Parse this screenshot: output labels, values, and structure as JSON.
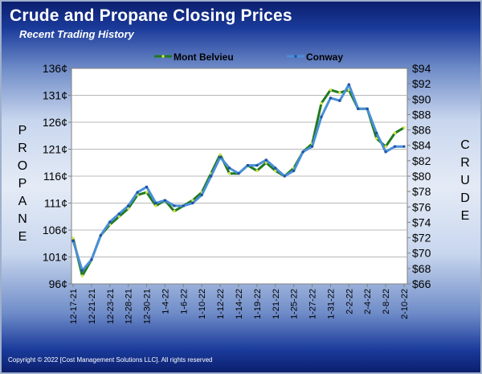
{
  "header": {
    "title": "Crude and Propane Closing Prices",
    "subtitle": "Recent Trading History"
  },
  "footer": {
    "copyright": "Copyright © 2022 [Cost Management Solutions LLC].  All rights reserved"
  },
  "axis_titles": {
    "left": "PROPANE",
    "right": "CRUDE"
  },
  "colors": {
    "mont_belvieu": "#1f7a1f",
    "mont_belvieu_marker": "#d8e84a",
    "conway": "#4a8fd8",
    "conway_marker": "#1e4fa0",
    "plot_bg": "#ffffff",
    "grid": "#b8b8b8"
  },
  "chart_data": {
    "type": "line",
    "title": "Crude and Propane Closing Prices",
    "subtitle": "Recent Trading History",
    "ylabel": "PROPANE",
    "y2label": "CRUDE",
    "ylim": [
      96,
      136
    ],
    "y2lim": [
      66,
      94
    ],
    "yticks": [
      "96¢",
      "101¢",
      "106¢",
      "111¢",
      "116¢",
      "121¢",
      "126¢",
      "131¢",
      "136¢"
    ],
    "y2ticks": [
      "$66",
      "$68",
      "$70",
      "$72",
      "$74",
      "$76",
      "$78",
      "$80",
      "$82",
      "$84",
      "$86",
      "$88",
      "$90",
      "$92",
      "$94"
    ],
    "x_tick_labels": [
      "12-17-21",
      "12-21-21",
      "12-23-21",
      "12-28-21",
      "12-30-21",
      "1-4-22",
      "1-6-22",
      "1-10-22",
      "1-12-22",
      "1-14-22",
      "1-19-22",
      "1-21-22",
      "1-25-22",
      "1-27-22",
      "1-31-22",
      "2-2-22",
      "2-4-22",
      "2-8-22",
      "2-10-22"
    ],
    "grid": true,
    "legend_position": "top",
    "series": [
      {
        "name": "Mont Belvieu",
        "values": [
          104.5,
          97.5,
          100.5,
          105,
          107,
          108.5,
          110,
          112.5,
          113,
          110.5,
          111.5,
          109.5,
          110.5,
          111.5,
          113,
          116.5,
          120,
          116.5,
          116.5,
          118,
          117,
          118.5,
          117,
          116,
          117.5,
          120.5,
          122,
          129.5,
          132,
          131.5,
          132,
          128.5,
          128.5,
          123,
          121.5,
          124,
          125
        ]
      },
      {
        "name": "Conway",
        "values": [
          104,
          98.5,
          100.5,
          105,
          107.5,
          109,
          110.5,
          113,
          114,
          111,
          111.5,
          110.5,
          110.5,
          111,
          112.5,
          116,
          119.5,
          117.5,
          116.5,
          118,
          118,
          119,
          117.5,
          116,
          117,
          120.5,
          121.5,
          127,
          130.5,
          130,
          133,
          128.5,
          128.5,
          124,
          120.5,
          121.5,
          121.5
        ]
      }
    ]
  }
}
